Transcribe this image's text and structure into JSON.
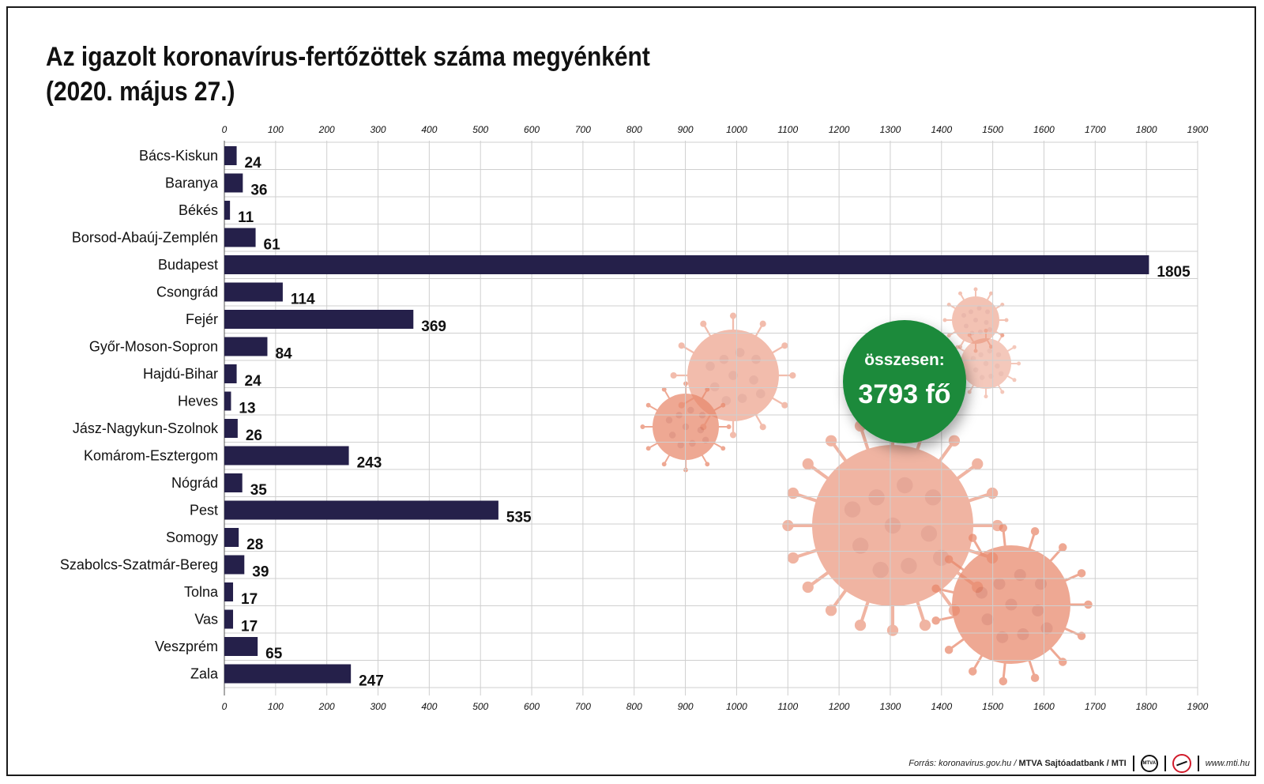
{
  "title_line1": "Az igazolt koronavírus-fertőzöttek száma megyénként",
  "title_line2": "(2020. május 27.)",
  "total": {
    "label": "összesen:",
    "value": "3793 fő",
    "color": "#1a8a3a"
  },
  "footer": {
    "source_prefix": "Forrás: koronavirus.gov.hu / ",
    "source_bold": "MTVA Sajtóadatbank / MTI",
    "site": "www.mti.hu",
    "logo1_text": "MTVA"
  },
  "colors": {
    "bar": "#25204a",
    "grid": "#cfcfcf",
    "virus": "#e8876a",
    "badge": "#1a8a3a"
  },
  "chart_data": {
    "type": "bar",
    "orientation": "horizontal",
    "categories": [
      "Bács-Kiskun",
      "Baranya",
      "Békés",
      "Borsod-Abaúj-Zemplén",
      "Budapest",
      "Csongrád",
      "Fejér",
      "Győr-Moson-Sopron",
      "Hajdú-Bihar",
      "Heves",
      "Jász-Nagykun-Szolnok",
      "Komárom-Esztergom",
      "Nógrád",
      "Pest",
      "Somogy",
      "Szabolcs-Szatmár-Bereg",
      "Tolna",
      "Vas",
      "Veszprém",
      "Zala"
    ],
    "values": [
      24,
      36,
      11,
      61,
      1805,
      114,
      369,
      84,
      24,
      13,
      26,
      243,
      35,
      535,
      28,
      39,
      17,
      17,
      65,
      247
    ],
    "xlim": [
      0,
      1900
    ],
    "ticks": [
      0,
      100,
      200,
      300,
      400,
      500,
      600,
      700,
      800,
      900,
      1000,
      1100,
      1200,
      1300,
      1400,
      1500,
      1600,
      1700,
      1800,
      1900
    ],
    "grid": true,
    "axis_position": "top-and-bottom"
  }
}
